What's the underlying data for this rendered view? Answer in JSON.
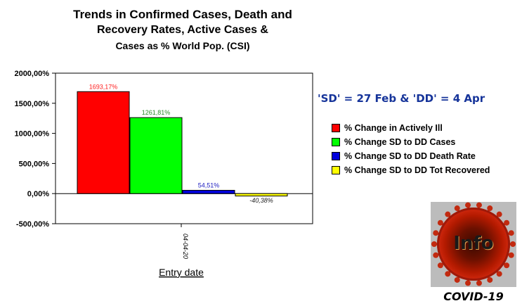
{
  "chart_data": {
    "type": "bar",
    "title": [
      "Trends in Confirmed Cases, Death and",
      "Recovery Rates, Active Cases &",
      "Cases as % World Pop. (CSI)"
    ],
    "xlabel": "Entry date",
    "categories": [
      "04-04-20"
    ],
    "yticks": [
      "2000,00%",
      "1500,00%",
      "1000,00%",
      "500,00%",
      "0,00%",
      "-500,00%"
    ],
    "ylim": [
      -500,
      2000
    ],
    "grid": false,
    "legend_position": "right",
    "series": [
      {
        "name": "% Change in Actively Ill",
        "values": [
          1693.17
        ],
        "label": "1693,17%",
        "color": "#ff0000",
        "label_color": "#ff2020"
      },
      {
        "name": "% Change SD to DD Cases",
        "values": [
          1261.81
        ],
        "label": "1261,81%",
        "color": "#00ff00",
        "label_color": "#2a8a2a"
      },
      {
        "name": "% Change SD to DD Death Rate",
        "values": [
          54.51
        ],
        "label": "54,51%",
        "color": "#0000dd",
        "label_color": "#2020c0"
      },
      {
        "name": "% Change SD to DD Tot Recovered",
        "values": [
          -40.38
        ],
        "label": "-40,38%",
        "color": "#ffff00",
        "label_color": "#202020"
      }
    ]
  },
  "annotation": "'SD' = 27 Feb & 'DD' = 4 Apr",
  "logo": {
    "text": "Info",
    "label": "COVID-19",
    "icon": "coronavirus-icon"
  }
}
